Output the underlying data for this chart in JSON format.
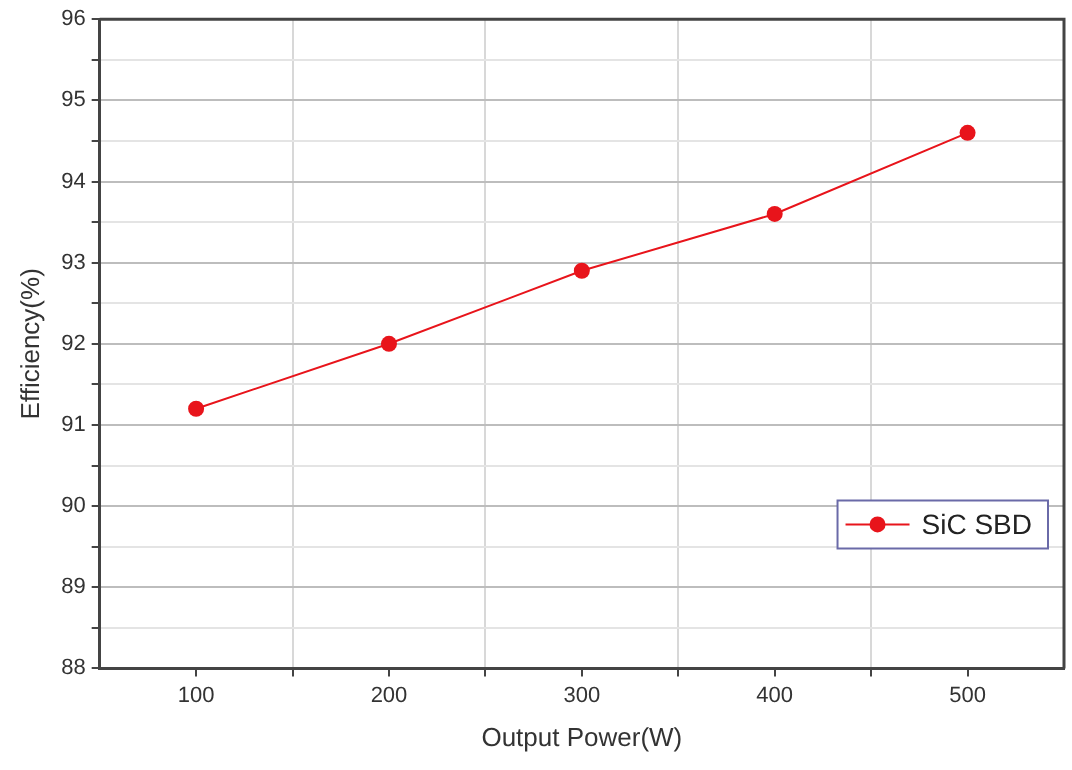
{
  "chart_data": {
    "type": "line",
    "xlabel": "Output Power(W)",
    "ylabel": "Efficiency(%)",
    "x": [
      100,
      200,
      300,
      400,
      500
    ],
    "series": [
      {
        "name": "SiC SBD",
        "color": "#e8141b",
        "values": [
          91.2,
          92.0,
          92.9,
          93.6,
          94.6
        ]
      }
    ],
    "xlim": [
      50,
      550
    ],
    "xticks": [
      100,
      {
        "value": 150,
        "label": null
      },
      200,
      {
        "value": 250,
        "label": null
      },
      300,
      {
        "value": 350,
        "label": null
      },
      400,
      {
        "value": 450,
        "label": null
      },
      500
    ],
    "ylim": [
      88,
      96
    ],
    "yticks": [
      88,
      {
        "value": 88.5,
        "label": null
      },
      89,
      {
        "value": 89.5,
        "label": null
      },
      90,
      {
        "value": 90.5,
        "label": null
      },
      91,
      {
        "value": 91.5,
        "label": null
      },
      92,
      {
        "value": 92.5,
        "label": null
      },
      93,
      {
        "value": 93.5,
        "label": null
      },
      94,
      {
        "value": 94.5,
        "label": null
      },
      95,
      {
        "value": 95.5,
        "label": null
      },
      96
    ],
    "grid": true,
    "legend": "bottom right",
    "marker": "circle",
    "line_style": "solid"
  }
}
